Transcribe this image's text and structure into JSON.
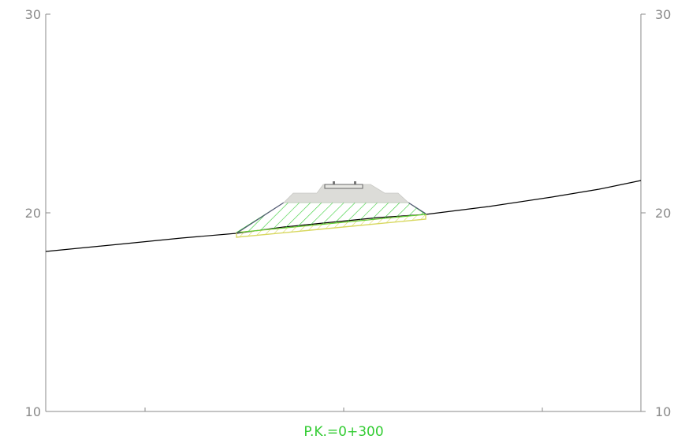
{
  "section": {
    "station_label": "P.K.=0+300",
    "elevation_axis": {
      "min": 10,
      "max": 30,
      "ticks": [
        "10",
        "20",
        "30"
      ],
      "right_ticks": [
        "10",
        "20",
        "30"
      ]
    },
    "colors": {
      "frame": "#8a8a8a",
      "ground_line": "#000000",
      "fill_hatch": "#33cc33",
      "base_layer": "#d8d860",
      "ballast": "#dcdcd8",
      "pk_label": "#33cc33"
    }
  }
}
